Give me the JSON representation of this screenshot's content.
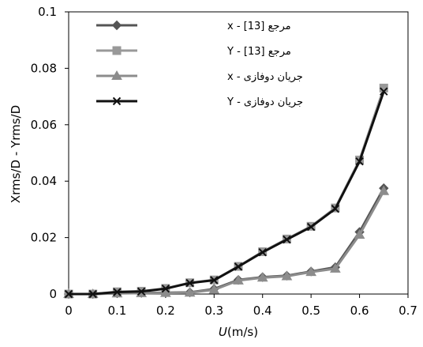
{
  "chart_data": {
    "type": "line",
    "title": "",
    "xlabel_italic": "U",
    "xlabel_rest": "(m/s)",
    "ylabel": "Xrms/D - Yrms/D",
    "xlim": [
      0,
      0.7
    ],
    "ylim": [
      0,
      0.1
    ],
    "x_ticks": [
      0,
      0.1,
      0.2,
      0.3,
      0.4,
      0.5,
      0.6,
      0.7
    ],
    "x_tick_labels": [
      "0",
      "0.1",
      "0.2",
      "0.3",
      "0.4",
      "0.5",
      "0.6",
      "0.7"
    ],
    "y_ticks": [
      0,
      0.02,
      0.04,
      0.06,
      0.08,
      0.1
    ],
    "y_tick_labels": [
      "0",
      "0.02",
      "0.04",
      "0.06",
      "0.08",
      "0.1"
    ],
    "grid": false,
    "legend_position": "top-left",
    "x": [
      0,
      0.05,
      0.1,
      0.15,
      0.2,
      0.25,
      0.3,
      0.35,
      0.4,
      0.45,
      0.5,
      0.55,
      0.6,
      0.65
    ],
    "series": [
      {
        "name": "مرجع [13] - x",
        "color": "#555555",
        "marker": "diamond",
        "line_width": 3,
        "values": [
          0,
          0,
          0.0003,
          0.0004,
          0.0005,
          0.0006,
          0.0018,
          0.005,
          0.006,
          0.0065,
          0.008,
          0.0095,
          0.022,
          0.0375
        ]
      },
      {
        "name": "مرجع [13] - Y",
        "color": "#999999",
        "marker": "square",
        "line_width": 3,
        "values": [
          0,
          0,
          0.0008,
          0.001,
          0.002,
          0.004,
          0.005,
          0.0098,
          0.015,
          0.0195,
          0.024,
          0.0305,
          0.0475,
          0.073
        ]
      },
      {
        "name": "جریان دوفازی - x",
        "color": "#8c8c8c",
        "marker": "triangle",
        "line_width": 3,
        "values": [
          0,
          0,
          0.0002,
          0.0003,
          0.0004,
          0.0005,
          0.0015,
          0.0048,
          0.0058,
          0.0063,
          0.0078,
          0.009,
          0.021,
          0.0365
        ]
      },
      {
        "name": "جریان دوفازی - Y",
        "color": "#111111",
        "marker": "x",
        "line_width": 3,
        "values": [
          0,
          0,
          0.0007,
          0.0009,
          0.0019,
          0.0039,
          0.0049,
          0.0097,
          0.0148,
          0.0193,
          0.0238,
          0.0302,
          0.047,
          0.0718
        ]
      }
    ]
  }
}
